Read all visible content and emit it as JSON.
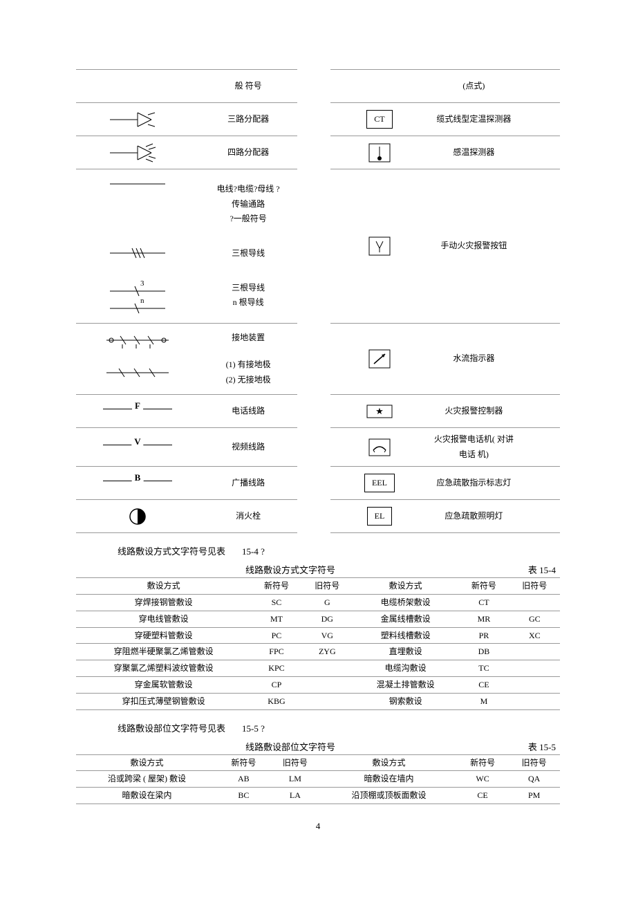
{
  "table1": {
    "rows": [
      {
        "leftDesc": "般 符号",
        "rightDesc": "(点式)"
      },
      {
        "leftDesc": "三路分配器",
        "rightSym": "CT",
        "rightDesc": "缆式线型定温探测器"
      },
      {
        "leftDesc": "四路分配器",
        "rightDesc": "感温探测器"
      },
      {
        "leftDesc_multi": [
          "电线?电缆?母线 ?",
          "传输通路",
          "?一般符号",
          "",
          "三根导线",
          "",
          "三根导线",
          "n 根导线"
        ],
        "rightDesc": "手动火灾报警按钮"
      },
      {
        "leftDesc_multi": [
          "接地装置",
          "",
          "(1) 有接地极",
          "(2) 无接地极"
        ],
        "rightDesc": "水流指示器"
      },
      {
        "leftLabel": "F",
        "leftDesc": "电话线路",
        "rightDesc": "火灾报警控制器"
      },
      {
        "leftLabel": "V",
        "leftDesc": "视频线路",
        "rightDesc": "火灾报警电话机( 对讲电话  机)"
      },
      {
        "leftLabel": "B",
        "leftDesc": "广播线路",
        "rightSym": "EEL",
        "rightDesc": "应急疏散指示标志灯"
      },
      {
        "leftDesc": "消火栓",
        "rightSym": "EL",
        "rightDesc": "应急疏散照明灯"
      }
    ]
  },
  "caption1": {
    "text": "线路敷设方式文字符号见表",
    "ref": "15-4 ?"
  },
  "table2": {
    "title": "线路敷设方式文字符号",
    "tableNo": "表 15-4",
    "headers": [
      "敷设方式",
      "新符号",
      "旧符号",
      "敷设方式",
      "新符号",
      "旧符号"
    ],
    "rows": [
      [
        "穿焊接钢管敷设",
        "SC",
        "G",
        "电缆桥架敷设",
        "CT",
        ""
      ],
      [
        "穿电线管敷设",
        "MT",
        "DG",
        "金属线槽敷设",
        "MR",
        "GC"
      ],
      [
        "穿硬塑料管敷设",
        "PC",
        "VG",
        "塑料线槽敷设",
        "PR",
        "XC"
      ],
      [
        "穿阻燃半硬聚氯乙烯管敷设",
        "FPC",
        "ZYG",
        "直埋敷设",
        "DB",
        ""
      ],
      [
        "穿聚氯乙烯塑料波纹管敷设",
        "KPC",
        "",
        "电缆沟敷设",
        "TC",
        ""
      ],
      [
        "穿金属软管敷设",
        "CP",
        "",
        "混凝土排管敷设",
        "CE",
        ""
      ],
      [
        "穿扣压式薄壁钢管敷设",
        "KBG",
        "",
        "钢索敷设",
        "M",
        ""
      ]
    ]
  },
  "caption2": {
    "text": "线路敷设部位文字符号见表",
    "ref": "15-5 ?"
  },
  "table3": {
    "title": "线路敷设部位文字符号",
    "tableNo": "表 15-5",
    "headers": [
      "敷设方式",
      "新符号",
      "旧符号",
      "敷设方式",
      "新符号",
      "旧符号"
    ],
    "rows": [
      [
        "沿或跨梁 ( 屋架) 敷设",
        "AB",
        "LM",
        "暗敷设在墙内",
        "WC",
        "QA"
      ],
      [
        "暗敷设在梁内",
        "BC",
        "LA",
        "沿顶棚或顶板面敷设",
        "CE",
        "PM"
      ]
    ]
  },
  "pageNumber": "4"
}
